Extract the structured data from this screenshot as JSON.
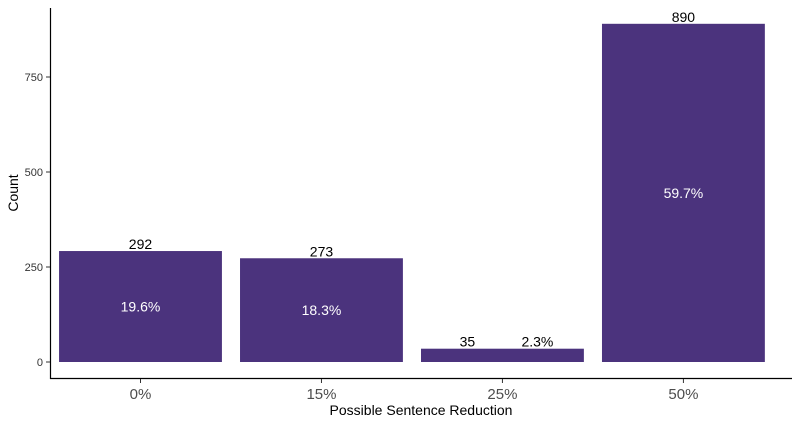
{
  "chart_data": {
    "type": "bar",
    "title": "",
    "xlabel": "Possible Sentence Reduction",
    "ylabel": "Count",
    "categories": [
      "0%",
      "15%",
      "25%",
      "50%"
    ],
    "values": [
      292,
      273,
      35,
      890
    ],
    "percent_labels": [
      "19.6%",
      "18.3%",
      "2.3%",
      "59.7%"
    ],
    "ylim": [
      0,
      890
    ],
    "yticks": [
      0,
      250,
      500,
      750
    ],
    "grid": false,
    "legend": "none",
    "bar_color": "#4b337d"
  }
}
